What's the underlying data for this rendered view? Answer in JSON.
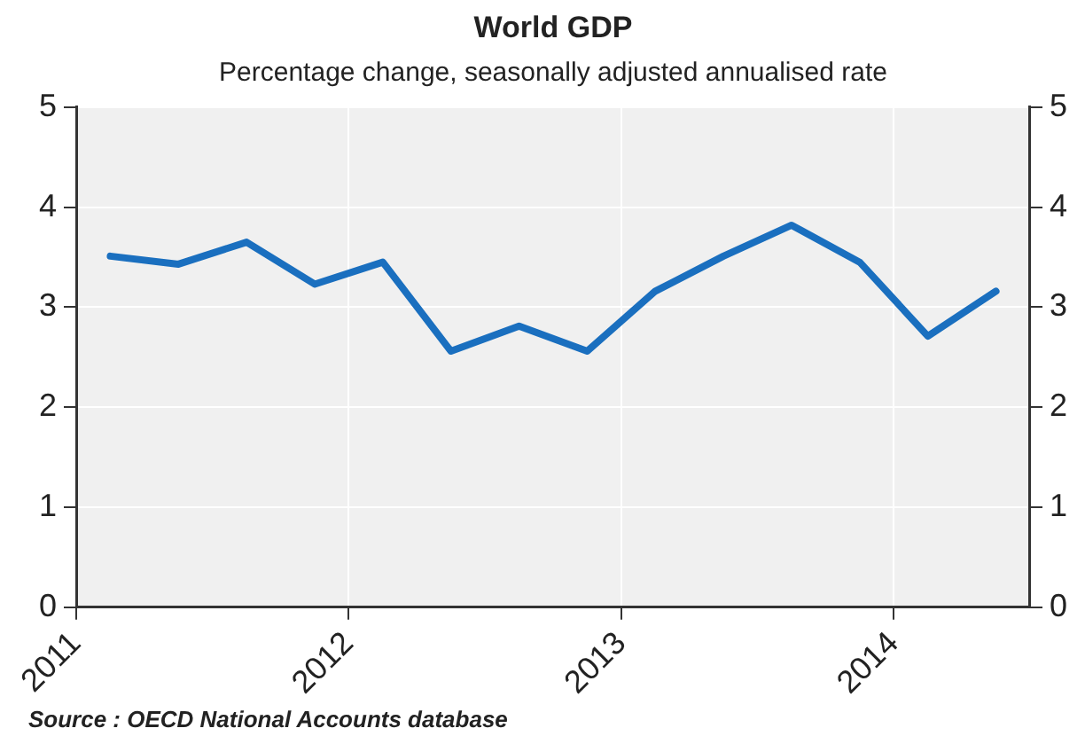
{
  "chart_data": {
    "type": "line",
    "title": "World GDP",
    "subtitle": "Percentage change, seasonally adjusted annualised rate",
    "x": [
      2011.125,
      2011.375,
      2011.625,
      2011.875,
      2012.125,
      2012.375,
      2012.625,
      2012.875,
      2013.125,
      2013.375,
      2013.625,
      2013.875,
      2014.125,
      2014.375
    ],
    "series": [
      {
        "color": "#1a6fbf",
        "values": [
          3.51,
          3.43,
          3.65,
          3.23,
          3.45,
          2.56,
          2.81,
          2.56,
          3.16,
          3.51,
          3.82,
          3.45,
          2.71,
          3.16
        ]
      }
    ],
    "xlim": [
      2011,
      2014.5
    ],
    "xticks": [
      2011,
      2012,
      2013,
      2014
    ],
    "ylim": [
      0,
      5
    ],
    "yticks": [
      0,
      1,
      2,
      3,
      4,
      5
    ],
    "y2lim": [
      0,
      5
    ],
    "y2ticks": [
      0,
      1,
      2,
      3,
      4,
      5
    ],
    "grid": true,
    "marker": "none",
    "annotations": [
      "Source : OECD National Accounts database"
    ]
  }
}
